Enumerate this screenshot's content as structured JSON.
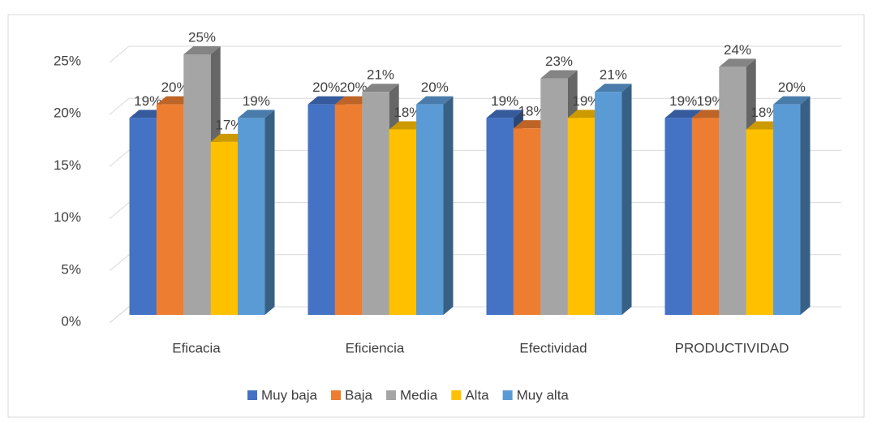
{
  "chart_data": {
    "type": "bar3d",
    "categories": [
      "Eficacia",
      "Eficiencia",
      "Efectividad",
      "PRODUCTIVIDAD"
    ],
    "series": [
      {
        "name": "Muy baja",
        "color": "#4472c4",
        "values": [
          18.9,
          20.2,
          18.9,
          18.9
        ],
        "value_labels": [
          "19%",
          "20%",
          "19%",
          "19%"
        ]
      },
      {
        "name": "Baja",
        "color": "#ed7d31",
        "values": [
          20.2,
          20.2,
          17.9,
          18.9
        ],
        "value_labels": [
          "20%",
          "20%",
          "18%",
          "19%"
        ]
      },
      {
        "name": "Media",
        "color": "#a5a5a5",
        "values": [
          25,
          21.4,
          22.7,
          23.8
        ],
        "value_labels": [
          "25%",
          "21%",
          "23%",
          "24%"
        ]
      },
      {
        "name": "Alta",
        "color": "#ffc000",
        "values": [
          16.6,
          17.8,
          18.9,
          17.8
        ],
        "value_labels": [
          "17%",
          "18%",
          "19%",
          "18%"
        ]
      },
      {
        "name": "Muy alta",
        "color": "#5b9bd5",
        "values": [
          18.9,
          20.2,
          21.4,
          20.2
        ],
        "value_labels": [
          "19%",
          "20%",
          "21%",
          "20%"
        ]
      }
    ],
    "ylim": [
      0,
      25
    ],
    "yticks": [
      {
        "value": 0,
        "label": "0%"
      },
      {
        "value": 5,
        "label": "5%"
      },
      {
        "value": 10,
        "label": "10%"
      },
      {
        "value": 15,
        "label": "15%"
      },
      {
        "value": 20,
        "label": "20%"
      },
      {
        "value": 25,
        "label": "25%"
      }
    ],
    "grid": true,
    "legend": "bottom"
  }
}
